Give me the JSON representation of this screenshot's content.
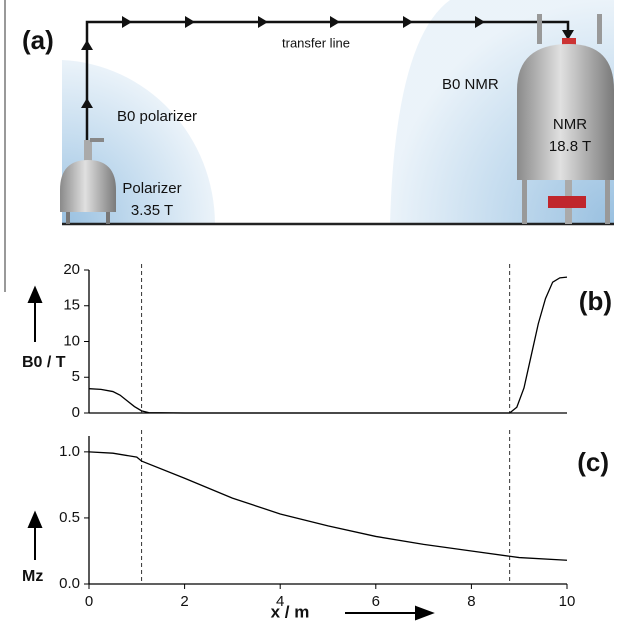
{
  "diagram": {
    "panel_label": "(a)",
    "transfer_line": "transfer line",
    "b0_polarizer": "B0 polarizer",
    "b0_nmr": "B0 NMR",
    "polarizer": {
      "name": "Polarizer",
      "field": "3.35 T"
    },
    "nmr": {
      "name": "NMR",
      "field": "18.8 T"
    }
  },
  "chart_data": [
    {
      "type": "line",
      "panel_label": "(b)",
      "y_label": "B0 / T",
      "color": "#000000",
      "x": [
        0,
        0.25,
        0.5,
        0.65,
        0.8,
        0.95,
        1.1,
        1.25,
        2,
        4,
        6,
        8,
        8.8,
        8.95,
        9.1,
        9.25,
        9.4,
        9.55,
        9.7,
        9.85,
        10
      ],
      "values": [
        3.4,
        3.3,
        3.0,
        2.5,
        1.7,
        0.9,
        0.3,
        0.05,
        0,
        0,
        0,
        0,
        0,
        0.8,
        3.5,
        8,
        12.5,
        16,
        18.3,
        18.9,
        19
      ],
      "xlim": [
        0,
        10
      ],
      "ylim": [
        0,
        20
      ],
      "yticks": [
        0,
        5,
        10,
        15,
        20
      ],
      "vlines": [
        1.1,
        8.8
      ]
    },
    {
      "type": "line",
      "panel_label": "(c)",
      "y_label": "Mz",
      "x_label": "x / m",
      "color": "#000000",
      "x": [
        0,
        0.5,
        1,
        1.1,
        2,
        3,
        4,
        5,
        6,
        7,
        8,
        8.8,
        9,
        10
      ],
      "values": [
        1.0,
        0.99,
        0.96,
        0.93,
        0.8,
        0.65,
        0.53,
        0.44,
        0.36,
        0.3,
        0.25,
        0.21,
        0.2,
        0.18
      ],
      "xlim": [
        0,
        10
      ],
      "ylim": [
        0,
        1.12
      ],
      "xticks": [
        0,
        2,
        4,
        6,
        8,
        10
      ],
      "yticks": [
        {
          "value": 0,
          "label": "0.0"
        },
        {
          "value": 0.5,
          "label": "0.5"
        },
        {
          "value": 1,
          "label": "1.0"
        }
      ],
      "vlines": [
        1.1,
        8.8
      ]
    }
  ]
}
